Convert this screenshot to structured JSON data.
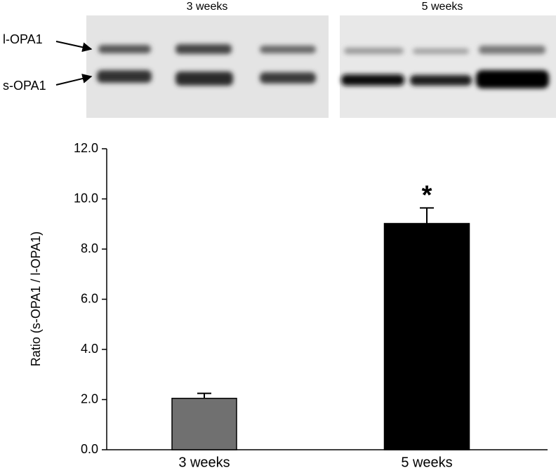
{
  "blot": {
    "panels": [
      "3 weeks",
      "5 weeks"
    ],
    "bands": [
      "l-OPA1",
      "s-OPA1"
    ]
  },
  "chart_data": {
    "type": "bar",
    "ylabel": "Ratio (s-OPA1 / l-OPA1)",
    "categories": [
      "3 weeks",
      "5 weeks"
    ],
    "values": [
      2.05,
      9.02
    ],
    "errors": [
      0.2,
      0.62
    ],
    "colors": [
      "#707070",
      "#000000"
    ],
    "ylim": [
      0,
      12
    ],
    "yticks": [
      {
        "value": 0,
        "label": "0.0"
      },
      {
        "value": 2,
        "label": "2.0"
      },
      {
        "value": 4,
        "label": "4.0"
      },
      {
        "value": 6,
        "label": "6.0"
      },
      {
        "value": 8,
        "label": "8.0"
      },
      {
        "value": 10,
        "label": "10.0"
      },
      {
        "value": 12,
        "label": "12.0"
      }
    ],
    "annotations": [
      {
        "text": "*",
        "x": "5 weeks"
      }
    ]
  }
}
